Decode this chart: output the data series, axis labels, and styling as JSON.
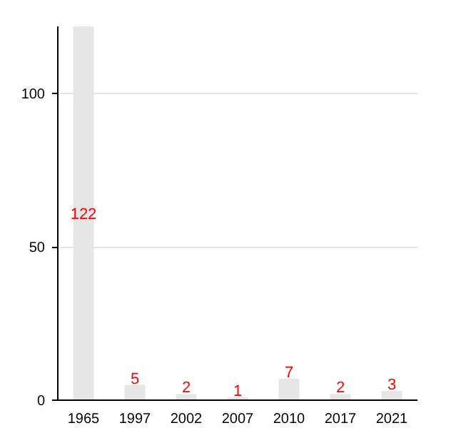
{
  "chart_data": {
    "type": "bar",
    "categories": [
      "1965",
      "1997",
      "2002",
      "2007",
      "2010",
      "2017",
      "2021"
    ],
    "values": [
      122,
      5,
      2,
      1,
      7,
      2,
      3
    ],
    "color": "#e6e6e6",
    "ylim": [
      0,
      122
    ],
    "yticks": [
      0,
      50,
      100
    ],
    "grid": "y",
    "data_labels": true
  }
}
